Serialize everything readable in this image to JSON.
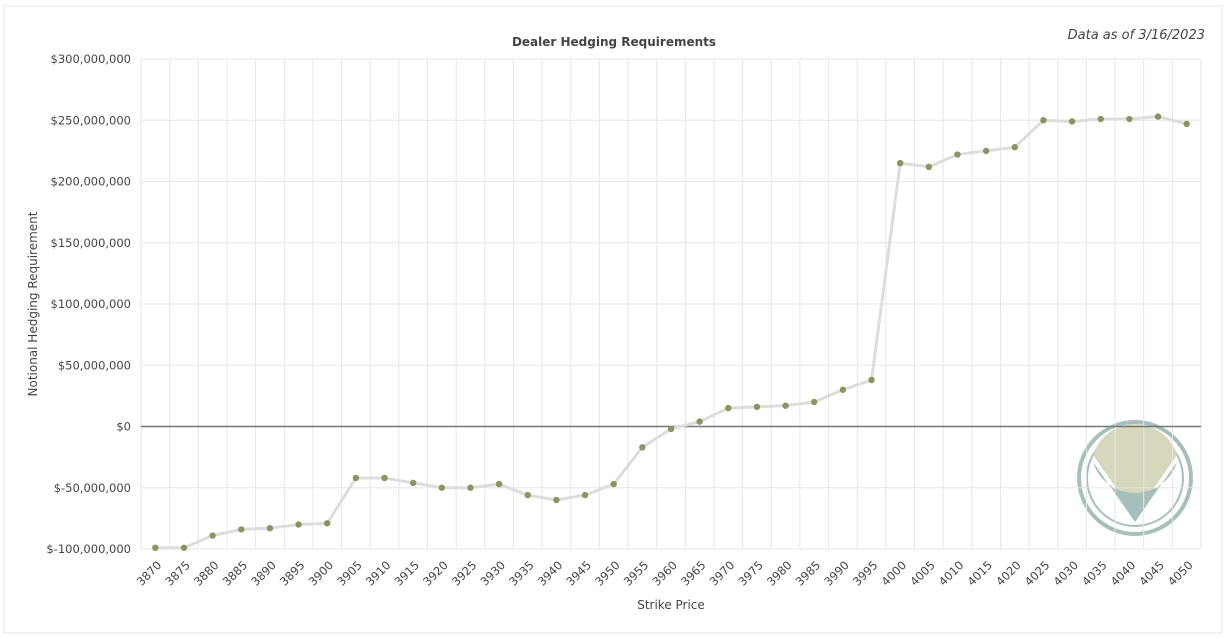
{
  "chart_data": {
    "type": "line",
    "title": "Dealer Hedging Requirements",
    "annotation": "Data as of 3/16/2023",
    "x_label": "Strike Price",
    "y_label": "Notional Hedging Requirement",
    "categories": [
      "3870",
      "3875",
      "3880",
      "3885",
      "3890",
      "3895",
      "3900",
      "3905",
      "3910",
      "3915",
      "3920",
      "3925",
      "3930",
      "3935",
      "3940",
      "3945",
      "3950",
      "3955",
      "3960",
      "3965",
      "3970",
      "3975",
      "3980",
      "3985",
      "3990",
      "3995",
      "4000",
      "4005",
      "4010",
      "4015",
      "4020",
      "4025",
      "4030",
      "4035",
      "4040",
      "4045",
      "4050"
    ],
    "series": [
      {
        "name": "Dealer Hedging Requirements",
        "color": "#8a9660",
        "line_color": "#dddddd",
        "values": [
          -99000000,
          -99000000,
          -89000000,
          -84000000,
          -83000000,
          -80000000,
          -79000000,
          -42000000,
          -42000000,
          -46000000,
          -50000000,
          -50000000,
          -47000000,
          -56000000,
          -60000000,
          -56000000,
          -47000000,
          -17000000,
          -2000000,
          4000000,
          15000000,
          16000000,
          17000000,
          20000000,
          30000000,
          38000000,
          215000000,
          212000000,
          222000000,
          225000000,
          228000000,
          250000000,
          249000000,
          251000000,
          251000000,
          253000000,
          247000000
        ]
      }
    ],
    "ylim": [
      -100000000,
      300000000
    ],
    "yticks": [
      {
        "value": -100000000,
        "label": "$-100,000,000"
      },
      {
        "value": -50000000,
        "label": "$-50,000,000"
      },
      {
        "value": 0,
        "label": "$0"
      },
      {
        "value": 50000000,
        "label": "$50,000,000"
      },
      {
        "value": 100000000,
        "label": "$100,000,000"
      },
      {
        "value": 150000000,
        "label": "$150,000,000"
      },
      {
        "value": 200000000,
        "label": "$200,000,000"
      },
      {
        "value": 250000000,
        "label": "$250,000,000"
      },
      {
        "value": 300000000,
        "label": "$300,000,000"
      }
    ],
    "grid": true
  }
}
